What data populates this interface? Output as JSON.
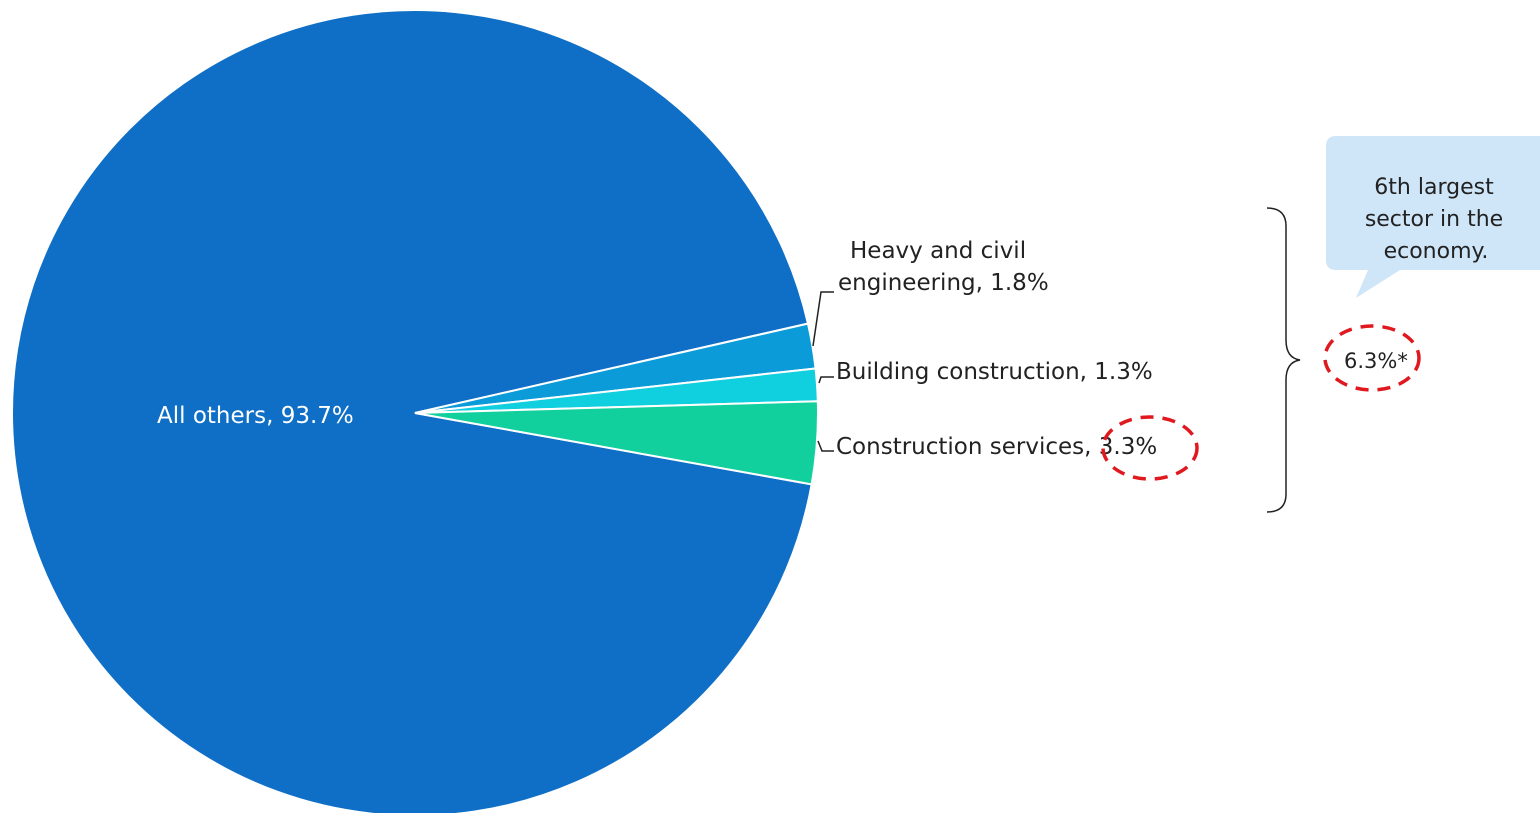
{
  "chart_data": {
    "type": "pie",
    "slices": [
      {
        "label": "All others",
        "value": 93.7,
        "value_text": "93.7%",
        "color": "#0f6fc6"
      },
      {
        "label": "Heavy and civil engineering",
        "label_lines": [
          "Heavy and civil",
          "engineering, 1.8%"
        ],
        "value": 1.8,
        "value_text": "1.8%",
        "color": "#0a9bd8"
      },
      {
        "label": "Building construction",
        "value": 1.3,
        "value_text": "1.3%",
        "color": "#10cfdf"
      },
      {
        "label": "Construction services",
        "value": 3.3,
        "value_text": "3.3%",
        "color": "#11d09d"
      }
    ],
    "labels": {
      "all_others": "All others, 93.7%",
      "heavy_line1": "Heavy and civil",
      "heavy_line2": "engineering, 1.8%",
      "building": "Building construction, 1.3%",
      "construction_services_name": "Construction services",
      "construction_services_value": ", 3.3%"
    },
    "annotations": {
      "total": "6.3%*",
      "callout_lines": [
        "6th largest",
        "sector in the",
        "economy."
      ]
    },
    "colors": {
      "circle_highlight": "#e0191f",
      "callout_fill": "#cfe6f8",
      "bracket": "#222222"
    }
  }
}
